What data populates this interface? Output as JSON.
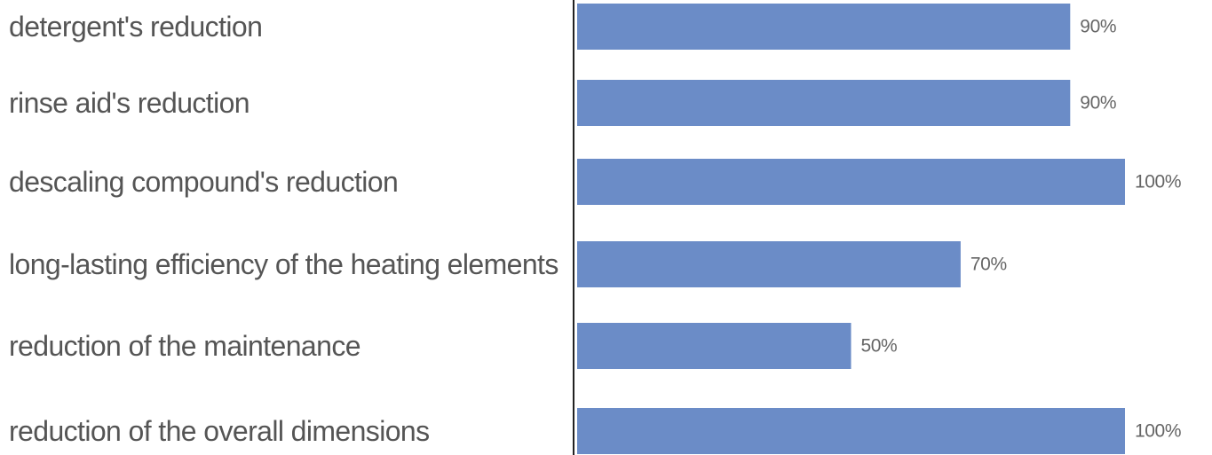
{
  "chart_data": {
    "type": "bar",
    "orientation": "horizontal",
    "categories": [
      "detergent's reduction",
      "rinse aid's reduction",
      "descaling compound's reduction",
      "long-lasting efficiency of the heating elements",
      "reduction of the maintenance",
      "reduction of the overall dimensions"
    ],
    "values": [
      90,
      90,
      100,
      70,
      50,
      100
    ],
    "value_labels": [
      "90%",
      "90%",
      "100%",
      "70%",
      "50%",
      "100%"
    ],
    "xlim": [
      0,
      100
    ],
    "bar_color": "#6b8cc7",
    "axis_color": "#222222",
    "grid": false,
    "legend": "none"
  }
}
